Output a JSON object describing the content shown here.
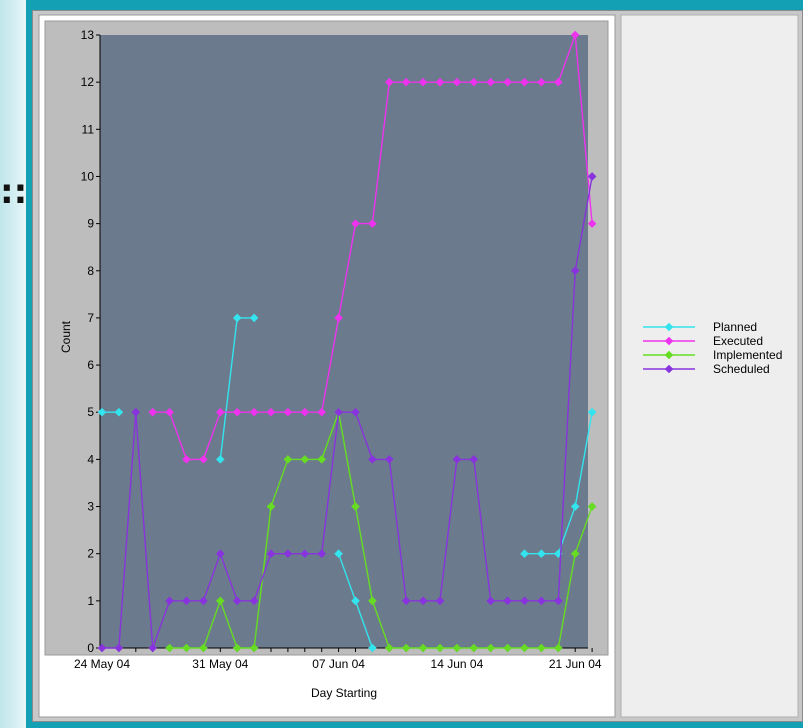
{
  "side_glyph": "::",
  "chart_data": {
    "type": "line",
    "xlabel": "Day Starting",
    "ylabel": "Count",
    "ylim": [
      0,
      13
    ],
    "yticks": [
      0,
      1,
      2,
      3,
      4,
      5,
      6,
      7,
      8,
      9,
      10,
      11,
      12,
      13
    ],
    "x_tick_labels": [
      "24 May 04",
      "31 May 04",
      "07 Jun 04",
      "14 Jun 04",
      "21 Jun 04"
    ],
    "x_tick_day_index": [
      0,
      7,
      14,
      21,
      28
    ],
    "grid": false,
    "legend_position": "right",
    "background_color": "#6b7a8c",
    "series": [
      {
        "name": "Planned",
        "color": "#33e4ee",
        "values": [
          5,
          5,
          null,
          null,
          null,
          null,
          null,
          4,
          7,
          7,
          null,
          null,
          2,
          null,
          2,
          1,
          0,
          null,
          null,
          null,
          null,
          null,
          null,
          null,
          null,
          2,
          2,
          2,
          3,
          5
        ]
      },
      {
        "name": "Executed",
        "color": "#ee33ee",
        "values": [
          null,
          null,
          null,
          5,
          5,
          4,
          4,
          5,
          5,
          5,
          5,
          5,
          5,
          5,
          7,
          9,
          9,
          12,
          12,
          12,
          12,
          12,
          12,
          12,
          12,
          12,
          12,
          12,
          13,
          9
        ]
      },
      {
        "name": "Implemented",
        "color": "#66dd22",
        "values": [
          null,
          null,
          null,
          null,
          0,
          0,
          0,
          1,
          0,
          0,
          3,
          4,
          4,
          4,
          5,
          3,
          1,
          0,
          0,
          0,
          0,
          0,
          0,
          0,
          0,
          0,
          0,
          0,
          2,
          3
        ]
      },
      {
        "name": "Scheduled",
        "color": "#8833dd",
        "values": [
          0,
          0,
          5,
          0,
          1,
          1,
          1,
          2,
          1,
          1,
          2,
          2,
          2,
          2,
          5,
          5,
          4,
          4,
          1,
          1,
          1,
          4,
          4,
          1,
          1,
          1,
          1,
          1,
          8,
          10
        ]
      }
    ]
  }
}
